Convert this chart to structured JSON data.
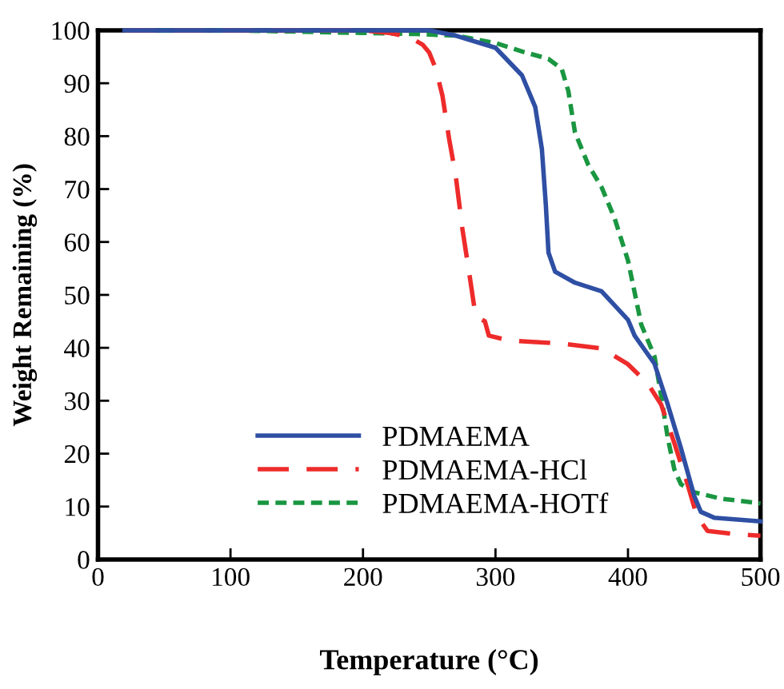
{
  "chart_data": {
    "type": "line",
    "xlabel": "Temperature (°C)",
    "ylabel": "Weight Remaining (%)",
    "xlim": [
      0,
      500
    ],
    "ylim": [
      0,
      100
    ],
    "xticks": [
      0,
      100,
      200,
      300,
      400,
      500
    ],
    "yticks": [
      0,
      10,
      20,
      30,
      40,
      50,
      60,
      70,
      80,
      90,
      100
    ],
    "grid": false,
    "legend": "bottom left",
    "marker": "none",
    "series": [
      {
        "name": "PDMAEMA",
        "color": "#2e4fa3",
        "line_style": "solid",
        "x": [
          20,
          100,
          200,
          250,
          270,
          300,
          320,
          330,
          335,
          338,
          340,
          345,
          360,
          380,
          400,
          405,
          420,
          430,
          440,
          450,
          455,
          465,
          500
        ],
        "values": [
          100,
          100,
          100,
          100,
          99,
          96.7,
          91.5,
          85.5,
          77.6,
          67,
          58,
          54.4,
          52.3,
          50.7,
          45.3,
          42.3,
          37,
          29.3,
          21,
          12,
          9,
          7.9,
          7.2
        ]
      },
      {
        "name": "PDMAEMA-HCl",
        "color": "#ee2b2b",
        "line_style": "dashed",
        "x": [
          20,
          100,
          200,
          220,
          230,
          240,
          245,
          250,
          255,
          260,
          265,
          270,
          275,
          280,
          285,
          292,
          295,
          310,
          350,
          380,
          400,
          415,
          425,
          435,
          445,
          452,
          460,
          480,
          500
        ],
        "values": [
          100,
          100,
          100,
          99.5,
          99,
          98,
          97.3,
          95.8,
          92.7,
          87.6,
          79.5,
          72.5,
          62.5,
          54.4,
          46,
          45,
          42.3,
          41.4,
          40.8,
          39.9,
          36.9,
          33.2,
          29.3,
          22,
          14.2,
          8.2,
          5.4,
          4.8,
          4.5
        ]
      },
      {
        "name": "PDMAEMA-HOTf",
        "color": "#1a9641",
        "line_style": "dotted",
        "x": [
          20,
          100,
          200,
          240,
          270,
          300,
          320,
          340,
          350,
          355,
          360,
          370,
          380,
          390,
          400,
          405,
          410,
          420,
          425,
          430,
          435,
          440,
          450,
          470,
          500
        ],
        "values": [
          100,
          100,
          99.5,
          99.3,
          99,
          97.6,
          96,
          94.6,
          92.7,
          88.5,
          80.7,
          74.6,
          70.4,
          64.4,
          56.5,
          50.5,
          44.4,
          38.4,
          31,
          23,
          17,
          14.2,
          12.7,
          11.5,
          10.6
        ]
      }
    ]
  }
}
